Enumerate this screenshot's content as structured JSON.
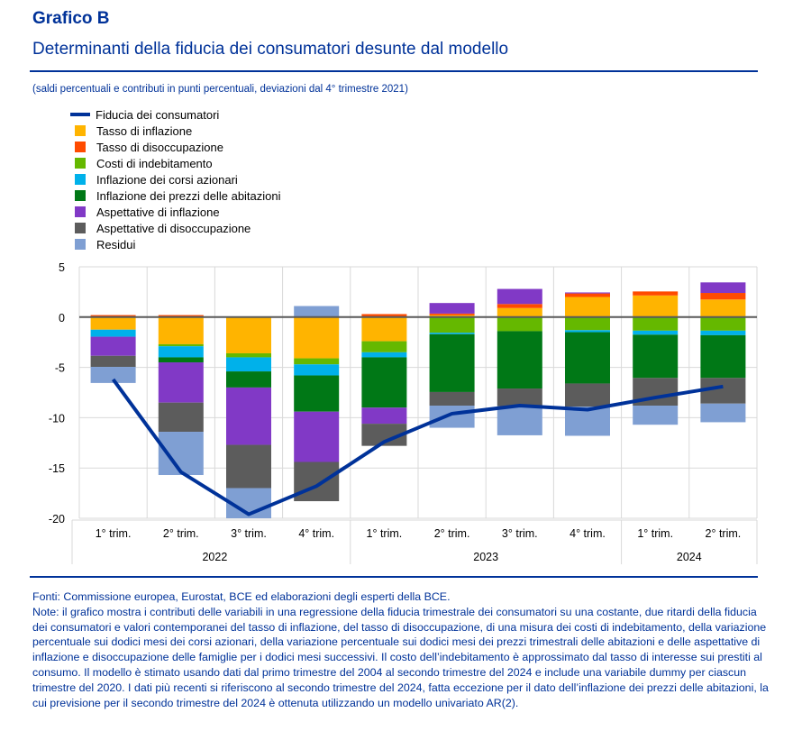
{
  "header": {
    "title": "Grafico B",
    "subtitle": "Determinanti della fiducia dei consumatori desunte dal modello",
    "units": "(saldi percentuali e contributi in punti percentuali, deviazioni dal 4° trimestre 2021)"
  },
  "chart_data": {
    "type": "bar",
    "stacked": true,
    "ylim": [
      -20,
      5
    ],
    "yticks": [
      "5",
      "0",
      "-5",
      "-10",
      "-15",
      "-20"
    ],
    "grid": true,
    "legend_position": "top-left",
    "categories": [
      "1° trim.",
      "2° trim.",
      "3° trim.",
      "4° trim.",
      "1° trim.",
      "2° trim.",
      "3° trim.",
      "4° trim.",
      "1° trim.",
      "2° trim."
    ],
    "years": [
      {
        "label": "2022",
        "span": 4
      },
      {
        "label": "2023",
        "span": 4
      },
      {
        "label": "2024",
        "span": 2
      }
    ],
    "line": {
      "name": "Fiducia dei consumatori",
      "color": "#003299",
      "values": [
        -6.2,
        -15.4,
        -19.6,
        -16.8,
        -12.4,
        -9.6,
        -8.8,
        -9.2,
        -8.0,
        -6.9
      ]
    },
    "series": [
      {
        "name": "Tasso di inflazione",
        "color": "#FFB400",
        "values": [
          -1.25,
          -2.7,
          -3.6,
          -4.1,
          -2.4,
          0.2,
          0.9,
          2.0,
          2.15,
          1.75
        ]
      },
      {
        "name": "Tasso di disoccupazione",
        "color": "#FF4B00",
        "values": [
          0.2,
          0.2,
          0.05,
          0,
          0.3,
          0.15,
          0.4,
          0.35,
          0.4,
          0.65
        ]
      },
      {
        "name": "Costi di indebitamento",
        "color": "#65B800",
        "values": [
          0,
          -0.2,
          -0.4,
          -0.6,
          -1.1,
          -1.55,
          -1.4,
          -1.3,
          -1.35,
          -1.35
        ]
      },
      {
        "name": "Inflazione dei corsi azionari",
        "color": "#00B1EA",
        "values": [
          -0.7,
          -1.1,
          -1.4,
          -1.1,
          -0.5,
          -0.15,
          0,
          -0.2,
          -0.4,
          -0.45
        ]
      },
      {
        "name": "Inflazione dei prezzi delle abitazioni",
        "color": "#007816",
        "values": [
          0,
          -0.5,
          -1.6,
          -3.6,
          -5.0,
          -5.75,
          -5.7,
          -5.1,
          -4.3,
          -4.25
        ]
      },
      {
        "name": "Aspettative di inflazione",
        "color": "#8139C6",
        "values": [
          -1.9,
          -4.0,
          -5.7,
          -5.0,
          -1.6,
          1.05,
          1.5,
          0.1,
          0,
          1.05
        ]
      },
      {
        "name": "Aspettative di disoccupazione",
        "color": "#5C5C5C",
        "values": [
          -1.1,
          -2.9,
          -4.3,
          -3.9,
          -2.2,
          -1.35,
          -1.75,
          -2.3,
          -2.75,
          -2.55
        ]
      },
      {
        "name": "Residui",
        "color": "#7F9FD3",
        "values": [
          -1.6,
          -4.3,
          -3.0,
          1.1,
          0,
          -2.2,
          -2.9,
          -2.9,
          -1.9,
          -1.85
        ]
      }
    ]
  },
  "footer": {
    "sources": "Fonti: Commissione europea, Eurostat, BCE ed elaborazioni degli esperti della BCE.",
    "note": "Note: il grafico mostra i contributi delle variabili in una regressione della fiducia trimestrale dei consumatori su una costante, due ritardi della fiducia dei consumatori e valori contemporanei del tasso di inflazione, del tasso di disoccupazione, di una misura dei costi di indebitamento, della variazione percentuale sui dodici mesi dei corsi azionari, della variazione percentuale sui dodici mesi dei prezzi trimestrali delle abitazioni e delle aspettative di inflazione e disoccupazione delle famiglie per i dodici mesi successivi. Il costo dell’indebitamento è approssimato dal tasso di interesse sui prestiti al consumo. Il modello è stimato usando dati dal primo trimestre del 2004 al secondo trimestre del 2024 e include una variabile dummy per ciascun trimestre del 2020. I dati più recenti si riferiscono al secondo trimestre del 2024, fatta eccezione per il dato dell’inflazione dei prezzi delle abitazioni, la cui previsione per il secondo trimestre del 2024 è ottenuta utilizzando un modello univariato AR(2)."
  }
}
